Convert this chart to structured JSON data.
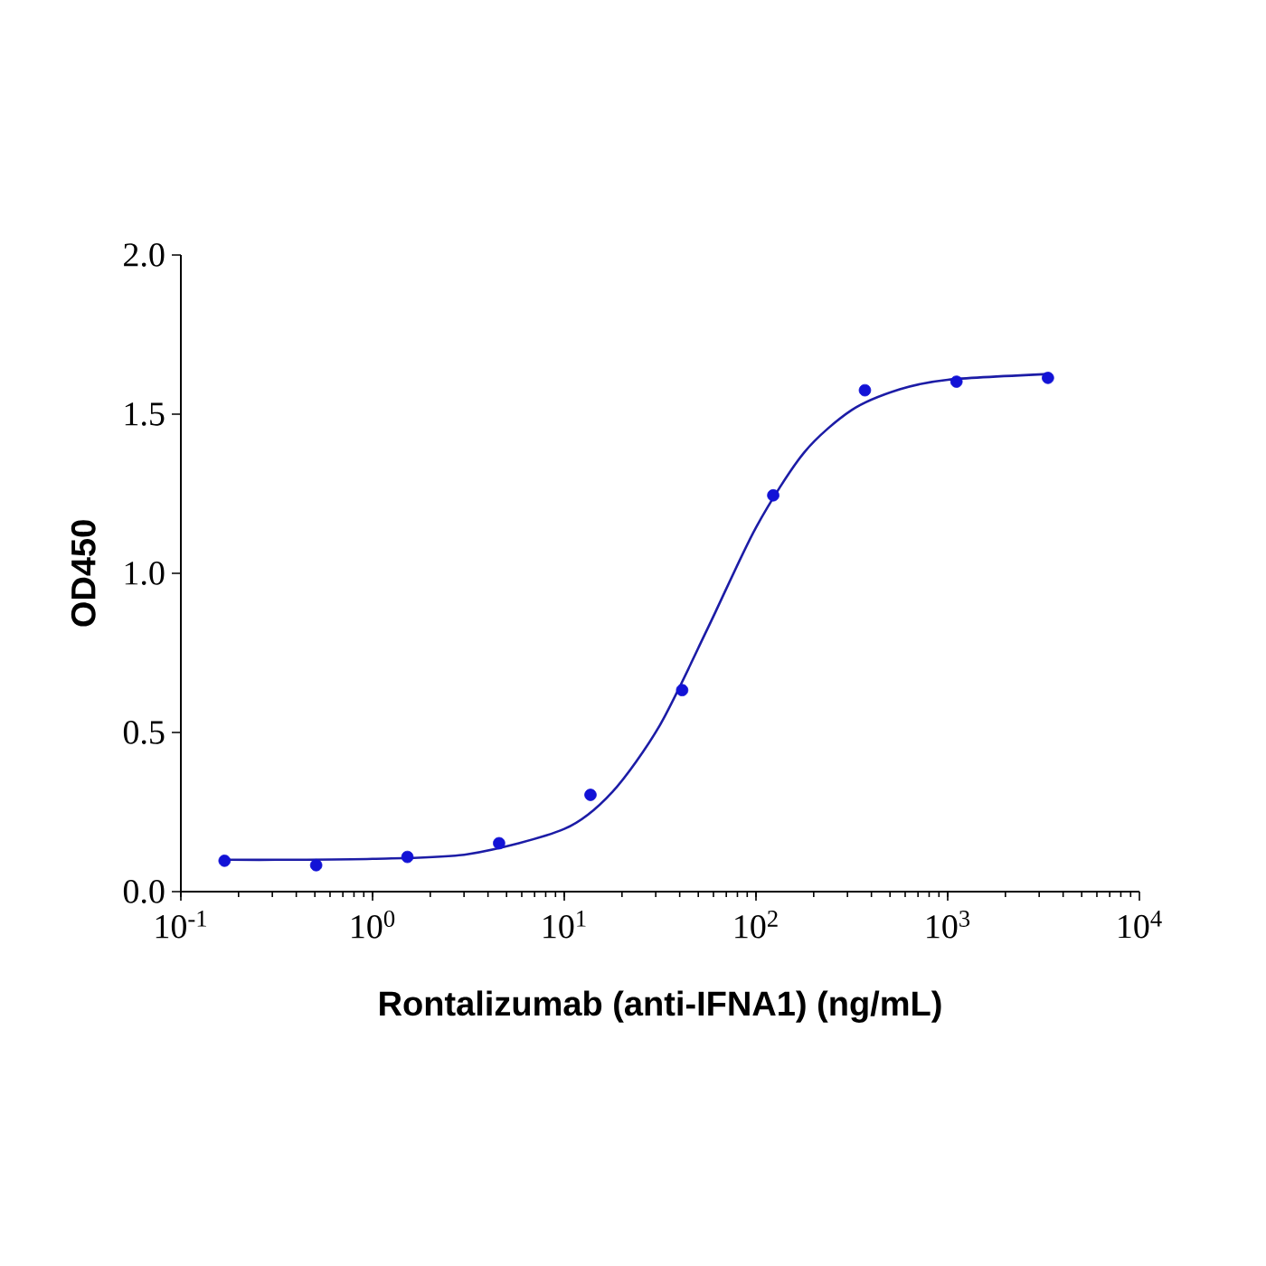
{
  "chart_data": {
    "type": "scatter",
    "xlabel": "Rontalizumab (anti-IFNA1) (ng/mL)",
    "ylabel": "OD450",
    "log": "x",
    "grid": false,
    "xlim": [
      0.1,
      10000
    ],
    "ylim": [
      0,
      2.0
    ],
    "xticks": [
      {
        "value": 0.1,
        "label": "10$^{-1}$"
      },
      {
        "value": 1,
        "label": "10$^{0}$"
      },
      {
        "value": 10,
        "label": "10$^{1}$"
      },
      {
        "value": 100,
        "label": "10$^{2}$"
      },
      {
        "value": 1000,
        "label": "10$^{3}$"
      },
      {
        "value": 10000,
        "label": "10$^{4}$"
      }
    ],
    "yticks": [
      {
        "value": 0,
        "label": "0.0"
      },
      {
        "value": 0.5,
        "label": "0.5"
      },
      {
        "value": 1.0,
        "label": "1.0"
      },
      {
        "value": 1.5,
        "label": "1.5"
      },
      {
        "value": 2.0,
        "label": "2.0"
      }
    ],
    "series": [
      {
        "type": "scatter",
        "marker": "circle",
        "color": "#1212d6",
        "x": [
          0.169,
          0.508,
          1.52,
          4.57,
          13.7,
          41.2,
          123,
          370,
          1111,
          3333
        ],
        "values": [
          0.097,
          0.083,
          0.109,
          0.152,
          0.304,
          0.633,
          1.245,
          1.575,
          1.602,
          1.614
        ]
      },
      {
        "type": "line",
        "color": "#1c1ca6",
        "marker": "none",
        "line_style": "solid",
        "x": [
          0.169,
          0.316,
          1,
          3.16,
          10,
          17.8,
          31.6,
          56.2,
          100,
          178,
          316,
          562,
          1000,
          3333
        ],
        "values": [
          0.1,
          0.1,
          0.103,
          0.118,
          0.197,
          0.313,
          0.524,
          0.829,
          1.144,
          1.379,
          1.513,
          1.578,
          1.608,
          1.626
        ]
      }
    ]
  }
}
